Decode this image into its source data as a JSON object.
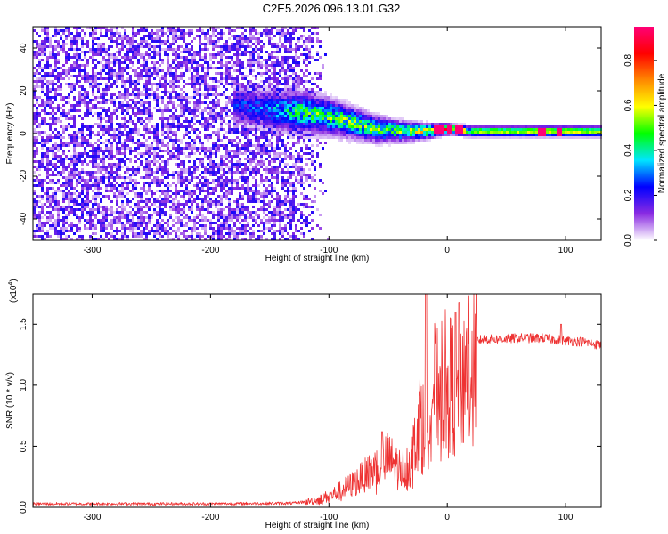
{
  "title": "C2E5.2026.096.13.01.G32",
  "chart_data": [
    {
      "type": "heatmap",
      "name": "spectrogram",
      "xlabel": "Height of straight line (km)",
      "ylabel": "Frequency (Hz)",
      "xlim": [
        -350,
        130
      ],
      "ylim": [
        -50,
        50
      ],
      "xticks": [
        -300,
        -200,
        -100,
        0,
        100
      ],
      "xtick_labels": [
        "-300",
        "-200",
        "-100",
        "0",
        "100"
      ],
      "yticks": [
        -40,
        -20,
        0,
        20,
        40
      ],
      "ytick_labels": [
        "-40",
        "-20",
        "0",
        "20",
        "40"
      ],
      "colorbar": {
        "label": "Normalized spectral amplitude",
        "range": [
          0.0,
          0.95
        ],
        "ticks": [
          0.0,
          0.2,
          0.4,
          0.6,
          0.8
        ],
        "tick_labels": [
          "0.0",
          "0.2",
          "0.4",
          "0.6",
          "0.8"
        ],
        "colormap": [
          "#ffffff",
          "#8a2be2",
          "#0000ff",
          "#00e5ff",
          "#00ff00",
          "#ffff00",
          "#ff8800",
          "#ff0000",
          "#ff0077"
        ]
      },
      "features": {
        "noise_region_x": [
          -350,
          -130
        ],
        "noise_amplitude": 0.22,
        "signal_track": {
          "x": [
            -175,
            -150,
            -125,
            -100,
            -80,
            -60,
            -40,
            -20,
            0,
            20,
            50,
            80,
            100,
            130
          ],
          "center_hz": [
            13,
            11,
            10,
            8,
            5,
            2,
            1,
            1,
            2,
            1,
            1,
            1,
            1,
            1
          ],
          "halfwidth_hz": [
            7,
            8,
            8,
            7,
            6,
            5,
            4,
            3,
            2,
            2,
            2,
            2,
            2,
            2
          ],
          "amplitude": [
            0.25,
            0.3,
            0.45,
            0.5,
            0.5,
            0.5,
            0.5,
            0.6,
            0.75,
            0.55,
            0.55,
            0.6,
            0.6,
            0.55
          ]
        },
        "hot_spots_x": [
          -10,
          -5,
          2,
          8,
          12,
          80,
          95
        ]
      }
    },
    {
      "type": "line",
      "name": "snr",
      "xlabel": "Height of straight line (km)",
      "ylabel": "SNR (10 * v/v)",
      "y_scale_label": "(x10",
      "y_scale_exponent": "4",
      "xlim": [
        -350,
        130
      ],
      "ylim": [
        0.0,
        1.75
      ],
      "xticks": [
        -300,
        -200,
        -100,
        0,
        100
      ],
      "xtick_labels": [
        "-300",
        "-200",
        "-100",
        "0",
        "100"
      ],
      "yticks": [
        0.0,
        0.5,
        1.0,
        1.5
      ],
      "ytick_labels": [
        "0.0",
        "0.5",
        "1.0",
        "1.5"
      ],
      "line_color": "#ee3333",
      "envelope": {
        "x": [
          -350,
          -200,
          -130,
          -110,
          -95,
          -80,
          -65,
          -55,
          -50,
          -40,
          -30,
          -25,
          -20,
          -17,
          -15,
          -12,
          -8,
          -3,
          0,
          5,
          10,
          12,
          15,
          20,
          25,
          30,
          40,
          60,
          80,
          100,
          115,
          130
        ],
        "y": [
          0.03,
          0.03,
          0.035,
          0.06,
          0.12,
          0.2,
          0.3,
          0.38,
          0.42,
          0.33,
          0.4,
          0.75,
          0.85,
          0.6,
          0.95,
          1.05,
          1.08,
          1.08,
          1.1,
          1.05,
          0.95,
          1.0,
          1.25,
          1.3,
          1.37,
          1.38,
          1.38,
          1.39,
          1.39,
          1.37,
          1.36,
          1.33
        ]
      },
      "spikes": [
        {
          "x": -55,
          "y": 0.62
        },
        {
          "x": -18,
          "y": 1.75
        },
        {
          "x": 10,
          "y": 1.68
        },
        {
          "x": 7,
          "y": 1.6
        },
        {
          "x": 96,
          "y": 1.5
        }
      ]
    }
  ]
}
